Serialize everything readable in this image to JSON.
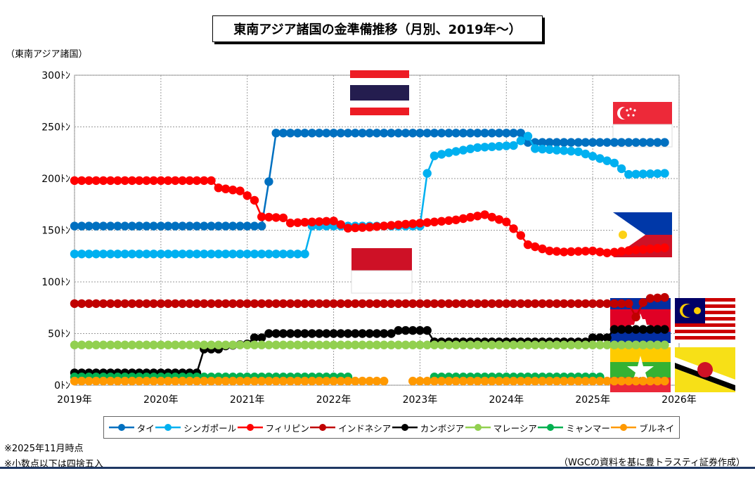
{
  "title": "東南アジア諸国の金準備推移（月別、2019年〜）",
  "ylabel": "（東南アジア諸国）",
  "notes": [
    "※2025年11月時点",
    "※小数点以下は四捨五入"
  ],
  "source": "（WGCの資料を基に豊トラスティ証券作成）",
  "chart_data": {
    "type": "line",
    "x_ticks": [
      "2019年",
      "2020年",
      "2021年",
      "2022年",
      "2023年",
      "2024年",
      "2025年",
      "2026年"
    ],
    "y_ticks": [
      "0ﾄﾝ",
      "50ﾄﾝ",
      "100ﾄﾝ",
      "150ﾄﾝ",
      "200ﾄﾝ",
      "250ﾄﾝ",
      "300ﾄﾝ"
    ],
    "ylim": [
      0,
      300
    ],
    "xlim": [
      "2019-01",
      "2026-01"
    ],
    "grid": true,
    "legend_position": "bottom",
    "series": [
      {
        "name": "タイ",
        "color": "#0070c0",
        "segments": [
          [
            [
              "2019-01",
              154
            ],
            [
              "2021-03",
              154
            ],
            [
              "2021-04",
              197
            ],
            [
              "2021-05",
              244
            ],
            [
              "2024-03",
              244
            ],
            [
              "2024-04",
              235
            ],
            [
              "2025-11",
              235
            ]
          ]
        ]
      },
      {
        "name": "シンガポール",
        "color": "#00b0f0",
        "segments": [
          [
            [
              "2019-01",
              127
            ],
            [
              "2021-09",
              127
            ],
            [
              "2021-10",
              154
            ],
            [
              "2023-01",
              154
            ],
            [
              "2023-02",
              205
            ],
            [
              "2023-03",
              222
            ],
            [
              "2023-05",
              225
            ],
            [
              "2023-09",
              230
            ],
            [
              "2024-02",
              232
            ],
            [
              "2024-04",
              241
            ],
            [
              "2024-05",
              229
            ],
            [
              "2024-11",
              226
            ],
            [
              "2025-04",
              215
            ],
            [
              "2025-06",
              204
            ],
            [
              "2025-11",
              205
            ]
          ]
        ]
      },
      {
        "name": "フィリピン",
        "color": "#ff0000",
        "segments": [
          [
            [
              "2019-01",
              198
            ],
            [
              "2020-08",
              198
            ],
            [
              "2020-09",
              191
            ],
            [
              "2020-12",
              188
            ],
            [
              "2021-02",
              179
            ],
            [
              "2021-03",
              163
            ],
            [
              "2021-06",
              162
            ],
            [
              "2021-07",
              157
            ],
            [
              "2022-01",
              159
            ],
            [
              "2022-03",
              152
            ],
            [
              "2022-06",
              153
            ],
            [
              "2023-03",
              158
            ],
            [
              "2023-06",
              160
            ],
            [
              "2023-10",
              165
            ],
            [
              "2024-01",
              158
            ],
            [
              "2024-03",
              145
            ],
            [
              "2024-04",
              136
            ],
            [
              "2024-07",
              130
            ],
            [
              "2024-09",
              129
            ],
            [
              "2025-01",
              130
            ],
            [
              "2025-03",
              128
            ],
            [
              "2025-07",
              131
            ],
            [
              "2025-11",
              133
            ]
          ]
        ]
      },
      {
        "name": "インドネシア",
        "color": "#c00000",
        "segments": [
          [
            [
              "2019-01",
              79
            ],
            [
              "2025-06",
              79
            ],
            [
              "2025-07",
              66
            ],
            [
              "2025-08",
              80
            ],
            [
              "2025-09",
              84
            ],
            [
              "2025-11",
              85
            ]
          ]
        ]
      },
      {
        "name": "カンボジア",
        "color": "#000000",
        "segments": [
          [
            [
              "2019-01",
              12
            ],
            [
              "2020-06",
              12
            ],
            [
              "2020-07",
              35
            ],
            [
              "2020-09",
              35
            ],
            [
              "2020-10",
              38
            ],
            [
              "2021-01",
              40
            ],
            [
              "2021-02",
              46
            ],
            [
              "2021-03",
              46
            ],
            [
              "2021-04",
              50
            ],
            [
              "2022-09",
              50
            ],
            [
              "2022-10",
              53
            ],
            [
              "2023-02",
              53
            ],
            [
              "2023-03",
              42
            ],
            [
              "2024-12",
              42
            ],
            [
              "2025-01",
              46
            ],
            [
              "2025-03",
              46
            ],
            [
              "2025-04",
              54
            ],
            [
              "2025-11",
              54
            ]
          ]
        ]
      },
      {
        "name": "マレーシア",
        "color": "#92d050",
        "segments": [
          [
            [
              "2019-01",
              39
            ],
            [
              "2025-11",
              39
            ]
          ]
        ]
      },
      {
        "name": "ミャンマー",
        "color": "#00b050",
        "segments": [
          [
            [
              "2019-01",
              8
            ],
            [
              "2022-03",
              8
            ]
          ],
          [
            [
              "2023-03",
              8
            ],
            [
              "2025-02",
              8
            ]
          ]
        ]
      },
      {
        "name": "ブルネイ",
        "color": "#ff9900",
        "segments": [
          [
            [
              "2019-01",
              4
            ],
            [
              "2022-08",
              4
            ]
          ],
          [
            [
              "2022-12",
              4
            ],
            [
              "2025-11",
              4
            ]
          ]
        ]
      }
    ]
  }
}
